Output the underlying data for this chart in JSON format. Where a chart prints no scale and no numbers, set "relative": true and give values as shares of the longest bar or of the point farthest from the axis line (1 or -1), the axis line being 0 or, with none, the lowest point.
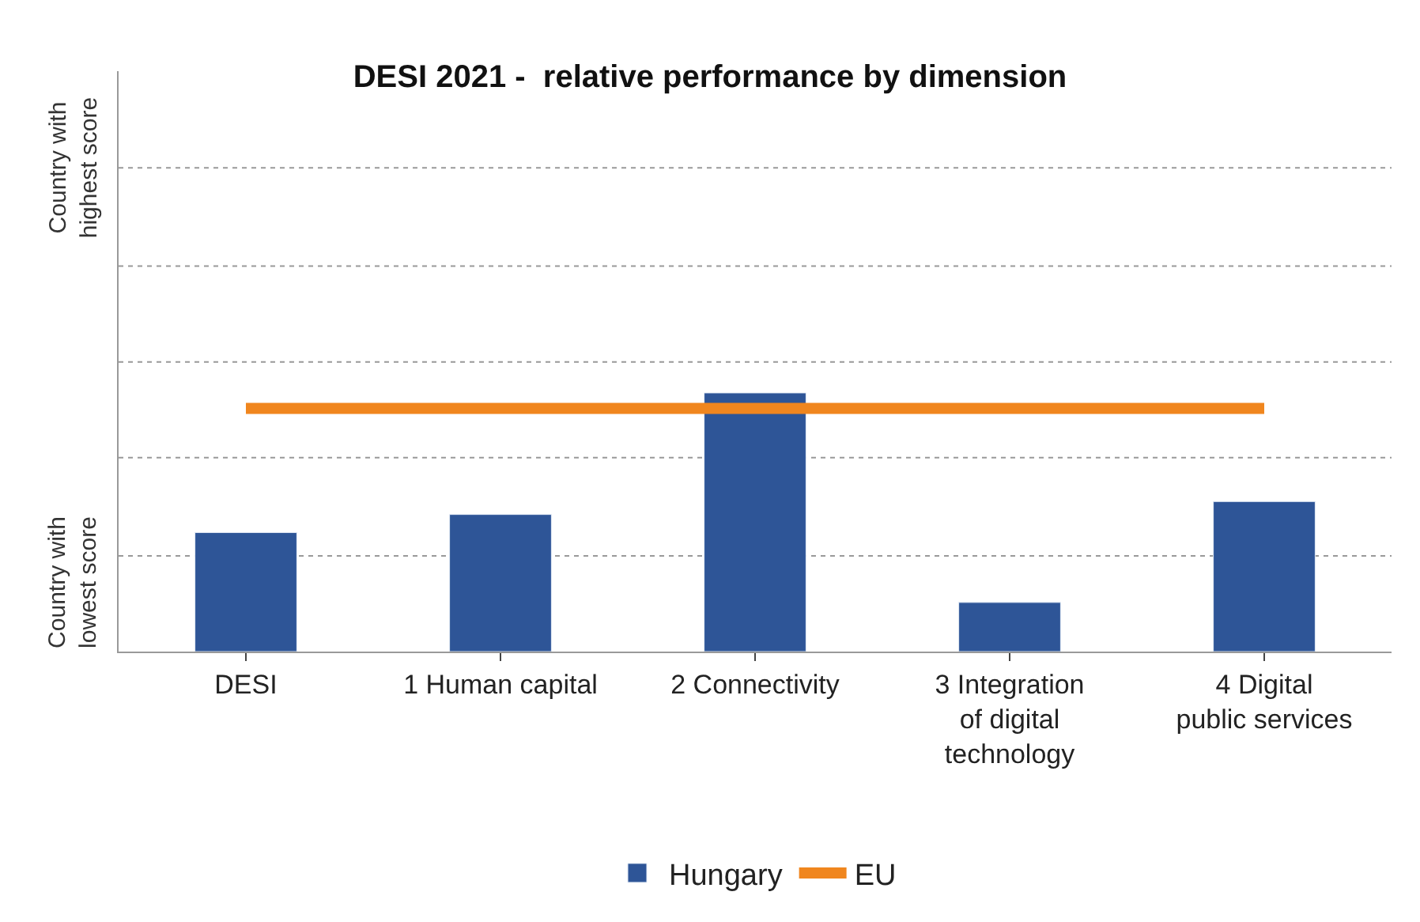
{
  "chart_data": {
    "type": "bar",
    "title": "DESI 2021 -  relative performance by dimension",
    "relative": true,
    "categories": [
      "DESI",
      "1 Human capital",
      "2 Connectivity",
      "3 Integration of digital technology",
      "4 Digital public services"
    ],
    "series": [
      {
        "name": "Hungary",
        "color": "#2e5597",
        "values": [
          0.46,
          0.53,
          1,
          0.19,
          0.58
        ]
      },
      {
        "name": "EU",
        "color": "#f0861e",
        "type": "line",
        "values": [
          0.94,
          0.94,
          0.94,
          0.94,
          0.94
        ]
      }
    ],
    "ref_lines": [
      {
        "axis": "y",
        "value": 0.37,
        "color": "#999999",
        "line_style": "dotted"
      },
      {
        "axis": "y",
        "value": 0.75,
        "color": "#999999",
        "line_style": "dotted"
      },
      {
        "axis": "y",
        "value": 1.12,
        "color": "#999999",
        "line_style": "dotted"
      },
      {
        "axis": "y",
        "value": 1.49,
        "color": "#999999",
        "line_style": "dotted"
      },
      {
        "axis": "y",
        "value": 1.87,
        "color": "#999999",
        "line_style": "dotted"
      }
    ],
    "annotations": [
      "Country with highest score",
      "Country with lowest score"
    ],
    "legend": "bottom",
    "marker": "none",
    "line_style": "solid"
  }
}
